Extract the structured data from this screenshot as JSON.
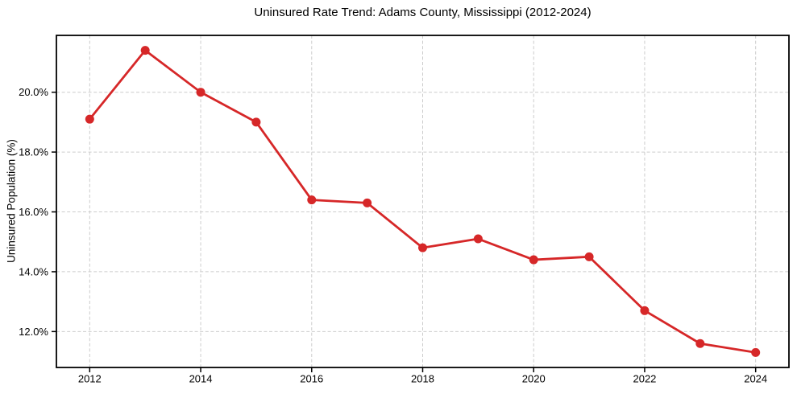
{
  "figure": {
    "background": "#ffffff"
  },
  "chart_data": {
    "type": "line",
    "title": "Uninsured Rate Trend: Adams County, Mississippi (2012-2024)",
    "xlabel": "",
    "ylabel": "Uninsured Population (%)",
    "x": [
      2012,
      2013,
      2014,
      2015,
      2016,
      2017,
      2018,
      2019,
      2020,
      2021,
      2022,
      2023,
      2024
    ],
    "values": [
      19.1,
      21.4,
      20.0,
      19.0,
      16.4,
      16.3,
      14.8,
      15.1,
      14.4,
      14.5,
      12.7,
      11.6,
      11.3
    ],
    "xlim": [
      2011.4,
      2024.6
    ],
    "ylim": [
      10.8,
      21.9
    ],
    "xticks": {
      "values": [
        2012,
        2014,
        2016,
        2018,
        2020,
        2022,
        2024
      ],
      "labels": [
        "2012",
        "2014",
        "2016",
        "2018",
        "2020",
        "2022",
        "2024"
      ]
    },
    "yticks": {
      "values": [
        12,
        14,
        16,
        18,
        20
      ],
      "labels": [
        "12.0%",
        "14.0%",
        "16.0%",
        "18.0%",
        "20.0%"
      ]
    },
    "grid": true,
    "grid_style": "dashed",
    "legend_position": "none",
    "marker": "circle",
    "colors": {
      "line": "#d62728",
      "marker": "#d62728",
      "grid": "#cccccc",
      "spine": "#000000",
      "text": "#000000"
    }
  }
}
